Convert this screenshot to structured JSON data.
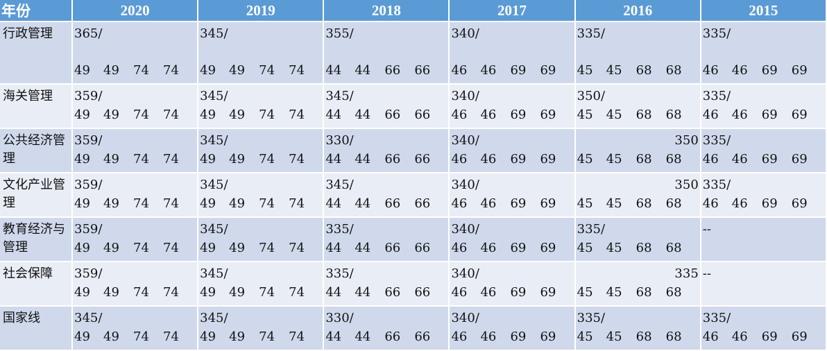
{
  "header": {
    "label": "年份",
    "years": [
      "2020",
      "2019",
      "2018",
      "2017",
      "2016",
      "2015"
    ]
  },
  "rows": [
    {
      "name": "行政管理",
      "cells": [
        {
          "total": "365/",
          "scores": [
            "49",
            "49",
            "74",
            "74"
          ]
        },
        {
          "total": "345/",
          "scores": [
            "49",
            "49",
            "74",
            "74"
          ]
        },
        {
          "total": "355/",
          "scores": [
            "44",
            "44",
            "66",
            "66"
          ]
        },
        {
          "total": "340/",
          "scores": [
            "46",
            "46",
            "69",
            "69"
          ]
        },
        {
          "total": "335/",
          "scores": [
            "45",
            "45",
            "68",
            "68"
          ]
        },
        {
          "total": "335/",
          "scores": [
            "46",
            "46",
            "69",
            "69"
          ]
        }
      ]
    },
    {
      "name": "海关管理",
      "cells": [
        {
          "total": "359/",
          "scores": [
            "49",
            "49",
            "74",
            "74"
          ]
        },
        {
          "total": "345/",
          "scores": [
            "49",
            "49",
            "74",
            "74"
          ]
        },
        {
          "total": "345/",
          "scores": [
            "44",
            "44",
            "66",
            "66"
          ]
        },
        {
          "total": "340/",
          "scores": [
            "46",
            "46",
            "69",
            "69"
          ]
        },
        {
          "total": "350/",
          "scores": [
            "45",
            "45",
            "68",
            "68"
          ]
        },
        {
          "total": "335/",
          "scores": [
            "46",
            "46",
            "69",
            "69"
          ]
        }
      ]
    },
    {
      "name": "公共经济管理",
      "cells": [
        {
          "total": "359/",
          "scores": [
            "49",
            "49",
            "74",
            "74"
          ]
        },
        {
          "total": "345/",
          "scores": [
            "49",
            "49",
            "74",
            "74"
          ]
        },
        {
          "total": "330/",
          "scores": [
            "44",
            "44",
            "66",
            "66"
          ]
        },
        {
          "total": "340/",
          "scores": [
            "46",
            "46",
            "69",
            "69"
          ]
        },
        {
          "total": "350",
          "align": "right",
          "scores": [
            "45",
            "45",
            "68",
            "68"
          ]
        },
        {
          "total": "335/",
          "scores": [
            "46",
            "46",
            "69",
            "69"
          ]
        }
      ]
    },
    {
      "name": "文化产业管理",
      "cells": [
        {
          "total": "359/",
          "scores": [
            "49",
            "49",
            "74",
            "74"
          ]
        },
        {
          "total": "345/",
          "scores": [
            "49",
            "49",
            "74",
            "74"
          ]
        },
        {
          "total": "345/",
          "scores": [
            "44",
            "44",
            "66",
            "66"
          ]
        },
        {
          "total": "340/",
          "scores": [
            "46",
            "46",
            "69",
            "69"
          ]
        },
        {
          "total": "350",
          "align": "right",
          "scores": [
            "45",
            "45",
            "68",
            "68"
          ]
        },
        {
          "total": "335/",
          "scores": [
            "46",
            "46",
            "69",
            "69"
          ]
        }
      ]
    },
    {
      "name": "教育经济与管理",
      "cells": [
        {
          "total": "359/",
          "scores": [
            "49",
            "49",
            "74",
            "74"
          ]
        },
        {
          "total": "345/",
          "scores": [
            "49",
            "49",
            "74",
            "74"
          ]
        },
        {
          "total": "335/",
          "scores": [
            "44",
            "44",
            "66",
            "66"
          ]
        },
        {
          "total": "340/",
          "scores": [
            "46",
            "46",
            "69",
            "69"
          ]
        },
        {
          "total": "335/",
          "scores": [
            "45",
            "45",
            "68",
            "68"
          ]
        },
        {
          "total": "--",
          "scores": []
        }
      ]
    },
    {
      "name": "社会保障",
      "cells": [
        {
          "total": "359/",
          "scores": [
            "49",
            "49",
            "74",
            "74"
          ]
        },
        {
          "total": "345/",
          "scores": [
            "49",
            "49",
            "74",
            "74"
          ]
        },
        {
          "total": "335/",
          "scores": [
            "44",
            "44",
            "66",
            "66"
          ]
        },
        {
          "total": "340/",
          "scores": [
            "46",
            "46",
            "69",
            "69"
          ]
        },
        {
          "total": "335",
          "align": "right",
          "scores": [
            "45",
            "45",
            "68",
            "68"
          ]
        },
        {
          "total": "--",
          "scores": []
        }
      ]
    },
    {
      "name": "国家线",
      "cells": [
        {
          "total": "345/",
          "scores": [
            "49",
            "49",
            "74",
            "74"
          ]
        },
        {
          "total": "345/",
          "scores": [
            "49",
            "49",
            "74",
            "74"
          ]
        },
        {
          "total": "330/",
          "scores": [
            "44",
            "44",
            "66",
            "66"
          ]
        },
        {
          "total": "340/",
          "scores": [
            "46",
            "46",
            "69",
            "69"
          ]
        },
        {
          "total": "335/",
          "scores": [
            "45",
            "45",
            "68",
            "68"
          ]
        },
        {
          "total": "335/",
          "scores": [
            "46",
            "46",
            "69",
            "69"
          ]
        }
      ]
    }
  ],
  "colors": {
    "header_bg": "#5b9bd5",
    "row_dark": "#cfd9eb",
    "row_light": "#e9edf5",
    "text": "#111111"
  }
}
